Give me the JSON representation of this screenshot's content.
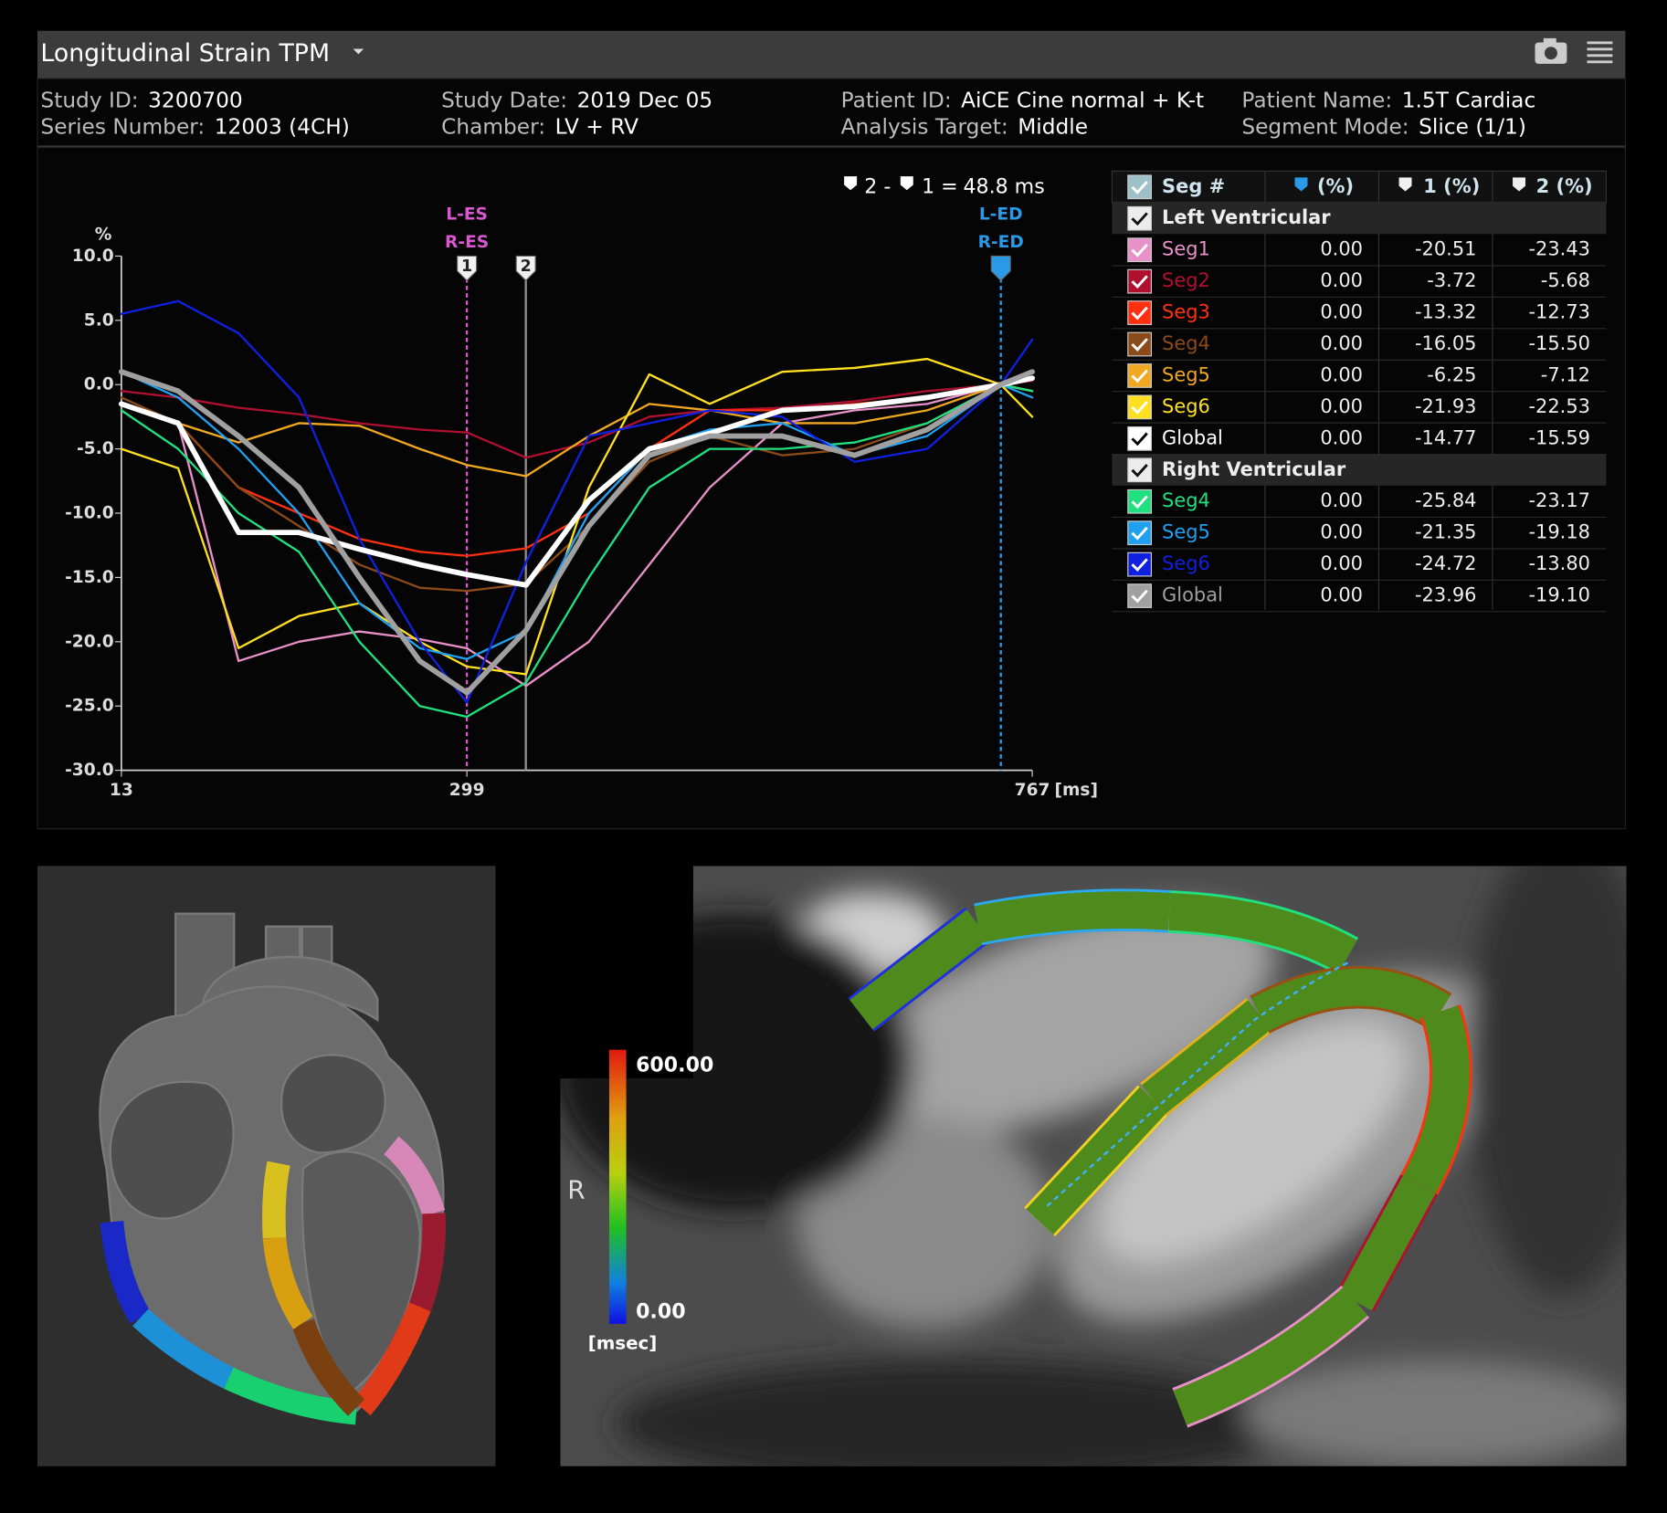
{
  "header": {
    "title": "Longitudinal Strain TPM"
  },
  "info": [
    {
      "label": "Study ID:",
      "value": "3200700"
    },
    {
      "label": "Series Number:",
      "value": "12003 (4CH)"
    },
    {
      "label": "Study Date:",
      "value": "2019 Dec 05"
    },
    {
      "label": "Chamber:",
      "value": "LV + RV"
    },
    {
      "label": "Patient ID:",
      "value": "AiCE Cine normal + K-t"
    },
    {
      "label": "Analysis Target:",
      "value": "Middle"
    },
    {
      "label": "Patient Name:",
      "value": "1.5T Cardiac"
    },
    {
      "label": "Segment Mode:",
      "value": "Slice (1/1)"
    }
  ],
  "chart_data": {
    "type": "line",
    "y_label": "%",
    "x_unit": "[ms]",
    "annotation": [
      "2 -",
      "1 =",
      "48.8 ms"
    ],
    "xlim": [
      13,
      767
    ],
    "xticks": [
      13,
      299,
      767
    ],
    "ylim": [
      -30,
      10
    ],
    "yticks": [
      {
        "value": 10,
        "label": "10.0"
      },
      {
        "value": 5,
        "label": "5.0"
      },
      {
        "value": 0,
        "label": "0.0"
      },
      {
        "value": -5,
        "label": "-5.0"
      },
      {
        "value": -10,
        "label": "-10.0"
      },
      {
        "value": -15,
        "label": "-15.0"
      },
      {
        "value": -20,
        "label": "-20.0"
      },
      {
        "value": -25,
        "label": "-25.0"
      },
      {
        "value": -30,
        "label": "-30.0"
      }
    ],
    "events": [
      {
        "labels": [
          "L-ES",
          "R-ES"
        ],
        "x": 299,
        "color": "#d858d0",
        "marker": "1"
      },
      {
        "x": 347.8,
        "color": "#909090",
        "marker": "2"
      },
      {
        "labels": [
          "L-ED",
          "R-ED"
        ],
        "x": 741,
        "color": "#2a9ae8"
      }
    ],
    "x": [
      13,
      60,
      110,
      160,
      210,
      260,
      299,
      348,
      400,
      450,
      500,
      560,
      620,
      680,
      741,
      767
    ],
    "table_columns": [
      "Seg #",
      "(%)",
      "1 (%)",
      "2 (%)"
    ],
    "groups": [
      {
        "name": "Left Ventricular",
        "series": [
          {
            "name": "Seg1",
            "color": "#e890c8",
            "values": [
              -1.5,
              -3,
              -21.5,
              -20,
              -19.2,
              -19.8,
              -20.51,
              -23.43,
              -20,
              -14,
              -8,
              -3,
              -2,
              -1.5,
              0,
              -0.5
            ],
            "cells": [
              "0.00",
              "-20.51",
              "-23.43"
            ]
          },
          {
            "name": "Seg2",
            "color": "#b01030",
            "values": [
              -0.5,
              -1,
              -1.8,
              -2.3,
              -3,
              -3.5,
              -3.72,
              -5.68,
              -4.5,
              -2.5,
              -2,
              -1.8,
              -1.3,
              -0.5,
              0,
              0.3
            ],
            "cells": [
              "0.00",
              "-3.72",
              "-5.68"
            ]
          },
          {
            "name": "Seg3",
            "color": "#ff3010",
            "values": [
              -1.5,
              -3,
              -8,
              -10,
              -12,
              -13,
              -13.32,
              -12.73,
              -10,
              -5,
              -2,
              -2,
              -1.5,
              -1,
              0,
              0.5
            ],
            "cells": [
              "0.00",
              "-13.32",
              "-12.73"
            ]
          },
          {
            "name": "Seg4",
            "color": "#8b4a1a",
            "values": [
              -1,
              -3,
              -8,
              -11,
              -14,
              -15.8,
              -16.05,
              -15.5,
              -11,
              -6,
              -4,
              -5.5,
              -5,
              -3,
              0,
              0.5
            ],
            "cells": [
              "0.00",
              "-16.05",
              "-15.50"
            ]
          },
          {
            "name": "Seg5",
            "color": "#f0a820",
            "values": [
              -1.5,
              -3,
              -4.5,
              -3,
              -3.2,
              -5,
              -6.25,
              -7.12,
              -4,
              -1.5,
              -2,
              -3,
              -3,
              -2,
              0,
              -0.5
            ],
            "cells": [
              "0.00",
              "-6.25",
              "-7.12"
            ]
          },
          {
            "name": "Seg6",
            "color": "#ffe020",
            "values": [
              -5,
              -6.5,
              -20.5,
              -18,
              -17,
              -20,
              -21.93,
              -22.53,
              -8,
              0.8,
              -1.5,
              1,
              1.3,
              2,
              0,
              -2.5
            ],
            "cells": [
              "0.00",
              "-21.93",
              "-22.53"
            ]
          },
          {
            "name": "Global",
            "color": "#ffffff",
            "values": [
              -1.5,
              -3,
              -11.5,
              -11.5,
              -12.8,
              -14,
              -14.77,
              -15.59,
              -9,
              -5,
              -3.8,
              -2,
              -1.7,
              -1,
              0,
              0.5
            ],
            "cells": [
              "0.00",
              "-14.77",
              "-15.59"
            ]
          }
        ]
      },
      {
        "name": "Right Ventricular",
        "series": [
          {
            "name": "Seg4",
            "color": "#20e080",
            "values": [
              -2,
              -5,
              -10,
              -13,
              -20,
              -25,
              -25.84,
              -23.17,
              -15,
              -8,
              -5,
              -5,
              -4.5,
              -3,
              0,
              -0.5
            ],
            "cells": [
              "0.00",
              "-25.84",
              "-23.17"
            ]
          },
          {
            "name": "Seg5",
            "color": "#20a0f0",
            "values": [
              1,
              -1,
              -5,
              -10,
              -17,
              -20.5,
              -21.35,
              -19.18,
              -10,
              -5,
              -3.5,
              -3,
              -5.5,
              -4,
              0,
              -1
            ],
            "cells": [
              "0.00",
              "-21.35",
              "-19.18"
            ]
          },
          {
            "name": "Seg6",
            "color": "#1020e0",
            "values": [
              5.5,
              6.5,
              4,
              -1,
              -12,
              -20,
              -24.72,
              -13.8,
              -4,
              -3,
              -2,
              -2.5,
              -6,
              -5,
              0,
              3.5
            ],
            "cells": [
              "0.00",
              "-24.72",
              "-13.80"
            ]
          },
          {
            "name": "Global",
            "color": "#a0a0a0",
            "values": [
              1,
              -0.5,
              -4,
              -8,
              -15,
              -21.5,
              -23.96,
              -19.1,
              -11,
              -5.5,
              -4,
              -4,
              -5.5,
              -3.5,
              0,
              1
            ],
            "cells": [
              "0.00",
              "-23.96",
              "-19.10"
            ]
          }
        ]
      }
    ]
  },
  "image": {
    "colorbar_max": "600.00",
    "colorbar_min": "0.00",
    "unit": "[msec]",
    "orientation": "R"
  }
}
